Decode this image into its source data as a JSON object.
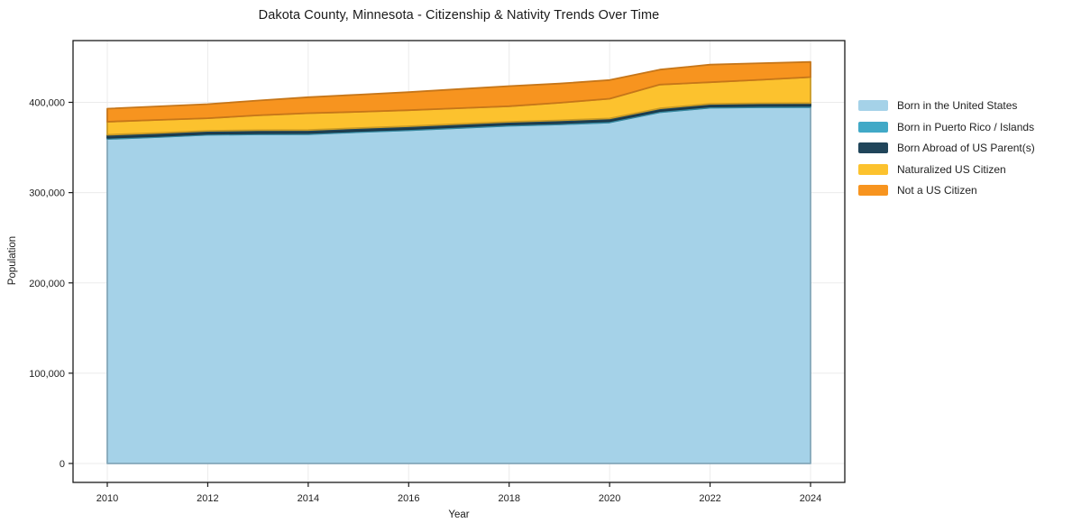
{
  "title": "Dakota County, Minnesota - Citizenship & Nativity Trends Over Time",
  "chart_data": {
    "type": "area",
    "stacked": true,
    "title": "Dakota County, Minnesota - Citizenship & Nativity Trends Over Time",
    "xlabel": "Year",
    "ylabel": "Population",
    "x": [
      2010,
      2011,
      2012,
      2013,
      2014,
      2015,
      2016,
      2017,
      2018,
      2019,
      2020,
      2021,
      2022,
      2023,
      2024
    ],
    "series": [
      {
        "name": "Born in the United States",
        "color": "#A5D2E8",
        "values": [
          359500,
          361500,
          364000,
          364500,
          364700,
          367000,
          369000,
          371500,
          374000,
          375500,
          377700,
          389000,
          394000,
          394500,
          394700
        ]
      },
      {
        "name": "Born in Puerto Rico / Islands",
        "color": "#41A9C7",
        "values": [
          1200,
          1200,
          1200,
          1300,
          1300,
          1300,
          1300,
          1400,
          1400,
          1400,
          1400,
          1400,
          1400,
          1500,
          1500
        ]
      },
      {
        "name": "Born Abroad of US Parent(s)",
        "color": "#20455A",
        "values": [
          3300,
          3300,
          3200,
          3300,
          3300,
          3200,
          3200,
          3100,
          3000,
          3100,
          3000,
          2900,
          2900,
          3000,
          3000
        ]
      },
      {
        "name": "Naturalized US Citizen",
        "color": "#FCC22E",
        "values": [
          14500,
          14500,
          14000,
          16500,
          18700,
          18000,
          17800,
          17500,
          17300,
          19500,
          21900,
          26400,
          24000,
          26000,
          28800
        ]
      },
      {
        "name": "Not a US Citizen",
        "color": "#F7941F",
        "values": [
          14500,
          15000,
          15600,
          16400,
          17700,
          19000,
          20000,
          21200,
          22300,
          21300,
          20700,
          16600,
          19400,
          18300,
          16700
        ]
      }
    ],
    "xticks": [
      2010,
      2012,
      2014,
      2016,
      2018,
      2020,
      2022,
      2024
    ],
    "yticks": [
      0,
      100000,
      200000,
      300000,
      400000
    ],
    "ytick_labels": [
      "0",
      "100,000",
      "200,000",
      "300,000",
      "400,000"
    ],
    "xlim": [
      2009.3,
      2024.7
    ],
    "ylim": [
      0,
      450000
    ],
    "grid": true,
    "legend_position": "right",
    "grid_color": "#EBEBEB",
    "axis_color": "#1A1A1A",
    "text_color": "#222222"
  }
}
